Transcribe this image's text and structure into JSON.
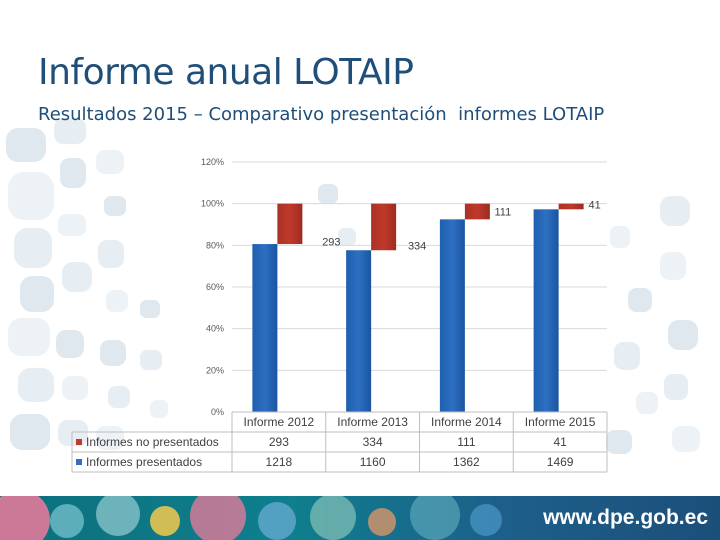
{
  "slide": {
    "title": "Informe anual LOTAIP",
    "subtitle": "Resultados 2015 – Comparativo presentación  informes LOTAIP",
    "footer_url": "www.dpe.gob.ec"
  },
  "colors": {
    "title": "#1f4e79",
    "presentados": "#2e6fc2",
    "no_presentados": "#c0392b",
    "footer": "#0f7f8d"
  },
  "chart_data": {
    "type": "bar",
    "stacked": "percent",
    "title": "",
    "xlabel": "",
    "ylabel": "",
    "y_ticks": [
      "0%",
      "20%",
      "40%",
      "60%",
      "80%",
      "100%",
      "120%"
    ],
    "ylim": [
      0,
      120
    ],
    "categories": [
      "Informe 2012",
      "Informe 2013",
      "Informe 2014",
      "Informe 2015"
    ],
    "series": [
      {
        "name": "Informes no presentados",
        "values": [
          293,
          334,
          111,
          41
        ],
        "data_labels": [
          "293",
          "334",
          "111",
          "41"
        ]
      },
      {
        "name": "Informes presentados",
        "values": [
          1218,
          1160,
          1362,
          1469
        ]
      }
    ],
    "table": {
      "rows": [
        {
          "label": "Informes no presentados",
          "values": [
            "293",
            "334",
            "111",
            "41"
          ]
        },
        {
          "label": "Informes presentados",
          "values": [
            "1218",
            "1160",
            "1362",
            "1469"
          ]
        }
      ]
    },
    "legend_position": "bottom-left (data table)",
    "grid": true
  }
}
